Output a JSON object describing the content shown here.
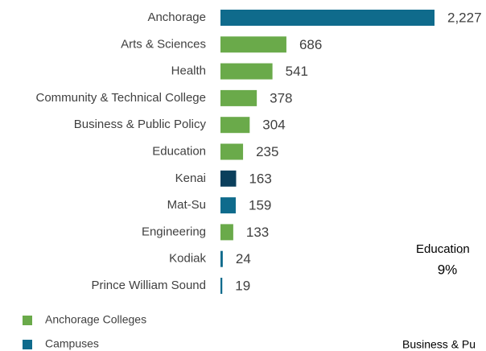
{
  "chart_data": {
    "type": "bar",
    "orientation": "horizontal",
    "categories": [
      "Anchorage",
      "Arts & Sciences",
      "Health",
      "Community & Technical College",
      "Business & Public Policy",
      "Education",
      "Kenai",
      "Mat-Su",
      "Engineering",
      "Kodiak",
      "Prince William Sound"
    ],
    "values": [
      2227,
      686,
      541,
      378,
      304,
      235,
      163,
      159,
      133,
      24,
      19
    ],
    "value_labels": [
      "2,227",
      "686",
      "541",
      "378",
      "304",
      "235",
      "163",
      "159",
      "133",
      "24",
      "19"
    ],
    "colors": [
      "#0f6b8c",
      "#6aaa4a",
      "#6aaa4a",
      "#6aaa4a",
      "#6aaa4a",
      "#6aaa4a",
      "#0b3f5c",
      "#0f6b8c",
      "#6aaa4a",
      "#0f6b8c",
      "#0f6b8c"
    ],
    "legend": [
      {
        "name": "Anchorage Colleges",
        "color": "#6aaa4a"
      },
      {
        "name": "Campuses",
        "color": "#0f6b8c"
      }
    ],
    "annotations": [
      "Education",
      "9%",
      "Business & Pu"
    ]
  }
}
